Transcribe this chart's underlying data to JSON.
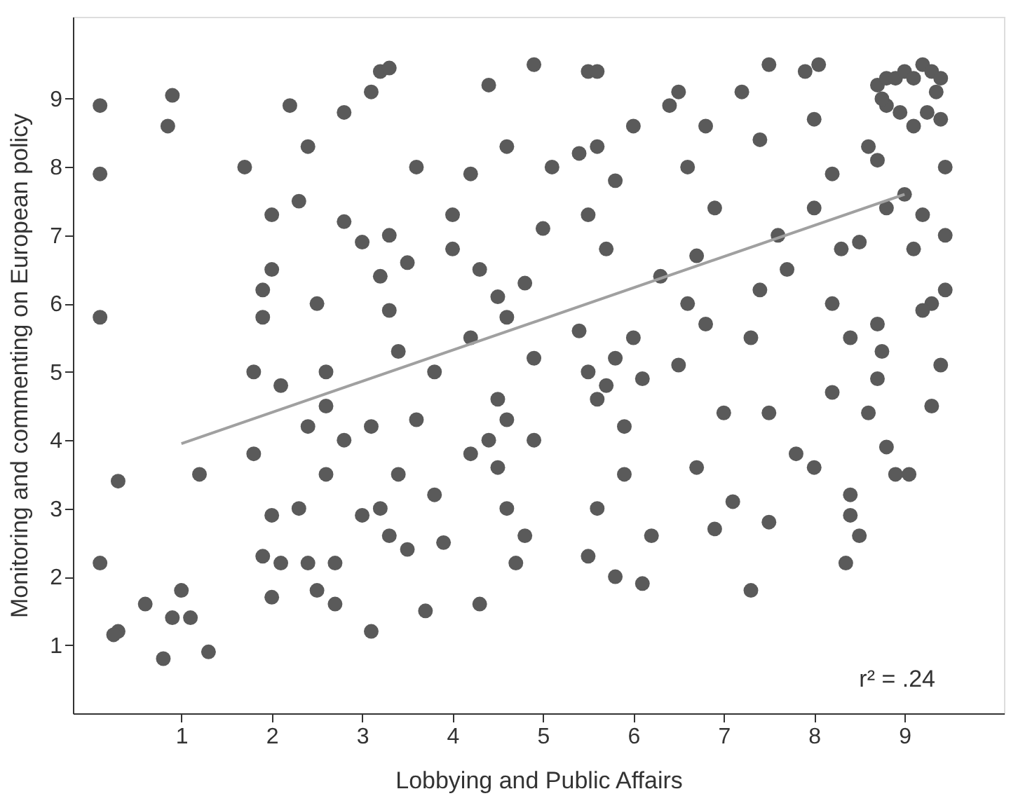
{
  "chart_data": {
    "type": "scatter",
    "xlabel": "Lobbying and Public Affairs",
    "ylabel": "Monitoring and commenting on European policy",
    "xlim": [
      -0.2,
      10.1
    ],
    "ylim": [
      0,
      10.2
    ],
    "xticks": [
      1,
      2,
      3,
      4,
      5,
      6,
      7,
      8,
      9
    ],
    "yticks": [
      1,
      2,
      3,
      4,
      5,
      6,
      7,
      8,
      9
    ],
    "grid": false,
    "marker": "circle",
    "annotations": [
      "r² = .24"
    ],
    "series": [
      {
        "color": "#5a5a5a",
        "x": [
          0.1,
          0.1,
          0.1,
          0.1,
          0.3,
          0.3,
          0.25,
          0.6,
          0.8,
          0.9,
          1.0,
          1.1,
          1.3,
          0.85,
          0.9,
          1.2,
          1.7,
          1.8,
          1.9,
          1.9,
          2.0,
          2.0,
          2.1,
          1.9,
          2.0,
          2.0,
          2.1,
          2.2,
          2.3,
          2.4,
          2.5,
          2.4,
          2.6,
          2.4,
          2.5,
          2.6,
          2.7,
          2.8,
          2.8,
          2.8,
          2.7,
          2.3,
          1.8,
          2.6,
          3.2,
          3.3,
          3.1,
          3.0,
          3.2,
          3.3,
          3.4,
          3.5,
          3.1,
          3.2,
          3.3,
          3.4,
          3.0,
          3.5,
          3.1,
          3.6,
          3.6,
          3.8,
          3.9,
          3.7,
          3.8,
          4.0,
          4.0,
          4.2,
          3.3,
          4.4,
          4.9,
          4.6,
          4.3,
          4.5,
          4.6,
          4.8,
          4.4,
          4.5,
          4.6,
          4.8,
          4.3,
          4.7,
          4.5,
          4.9,
          5.0,
          5.1,
          4.2,
          4.9,
          4.2,
          4.6,
          5.5,
          5.6,
          5.4,
          5.6,
          5.8,
          6.0,
          5.5,
          5.7,
          5.4,
          5.5,
          5.7,
          5.8,
          6.0,
          5.6,
          5.9,
          5.6,
          5.5,
          5.8,
          6.2,
          6.1,
          5.9,
          6.1,
          6.3,
          6.4,
          6.6,
          6.5,
          6.8,
          6.9,
          6.7,
          6.6,
          6.8,
          6.5,
          7.0,
          6.7,
          6.9,
          7.1,
          7.3,
          7.2,
          7.5,
          7.4,
          7.6,
          7.7,
          7.3,
          7.5,
          7.8,
          7.5,
          7.4,
          7.9,
          8.0,
          8.2,
          8.0,
          8.3,
          8.2,
          8.4,
          8.2,
          8.0,
          8.5,
          8.4,
          8.05,
          8.7,
          8.8,
          8.7,
          8.75,
          8.4,
          8.6,
          8.35,
          8.6,
          8.5,
          8.7,
          8.8,
          8.9,
          9.0,
          9.1,
          9.2,
          9.3,
          9.4,
          8.8,
          8.95,
          9.1,
          9.25,
          9.4,
          8.75,
          9.35,
          9.45,
          9.45,
          9.45,
          9.3,
          9.2,
          9.4,
          9.2,
          9.0,
          8.7,
          8.8,
          8.9,
          9.05,
          9.3,
          9.1
        ],
        "values": [
          8.9,
          7.9,
          5.8,
          2.2,
          3.4,
          1.2,
          1.15,
          1.6,
          0.8,
          1.4,
          1.8,
          1.4,
          0.9,
          8.6,
          9.05,
          3.5,
          8.0,
          5.0,
          6.2,
          5.8,
          7.3,
          6.5,
          4.8,
          2.3,
          2.9,
          1.7,
          2.2,
          8.9,
          7.5,
          8.3,
          6.0,
          4.2,
          5.0,
          2.2,
          1.8,
          3.5,
          1.6,
          8.8,
          7.2,
          4.0,
          2.2,
          3.0,
          3.8,
          4.5,
          9.4,
          9.45,
          9.1,
          6.9,
          6.4,
          5.9,
          5.3,
          6.6,
          4.2,
          3.0,
          2.6,
          3.5,
          2.9,
          2.4,
          1.2,
          8.0,
          4.3,
          3.2,
          2.5,
          1.5,
          5.0,
          6.8,
          7.3,
          5.5,
          7.0,
          9.2,
          9.5,
          8.3,
          6.5,
          6.1,
          5.8,
          6.3,
          4.0,
          3.6,
          3.0,
          2.6,
          1.6,
          2.2,
          4.6,
          5.2,
          7.1,
          8.0,
          3.8,
          4.0,
          7.9,
          4.3,
          9.4,
          9.4,
          8.2,
          8.3,
          7.8,
          8.6,
          7.3,
          6.8,
          5.6,
          5.0,
          4.8,
          5.2,
          5.5,
          4.6,
          4.2,
          3.0,
          2.3,
          2.0,
          2.6,
          1.9,
          3.5,
          4.9,
          6.4,
          8.9,
          8.0,
          9.1,
          8.6,
          7.4,
          6.7,
          6.0,
          5.7,
          5.1,
          4.4,
          3.6,
          2.7,
          3.1,
          1.8,
          9.1,
          9.5,
          8.4,
          7.0,
          6.5,
          5.5,
          4.4,
          3.8,
          2.8,
          6.2,
          9.4,
          8.7,
          7.9,
          7.4,
          6.8,
          6.0,
          5.5,
          4.7,
          3.6,
          2.6,
          3.2,
          9.5,
          8.1,
          7.4,
          5.7,
          5.3,
          2.9,
          4.4,
          2.2,
          8.3,
          6.9,
          9.2,
          9.3,
          9.3,
          9.4,
          9.3,
          9.5,
          9.4,
          9.3,
          8.9,
          8.8,
          8.6,
          8.8,
          8.7,
          9.0,
          9.1,
          8.0,
          7.0,
          6.2,
          6.0,
          5.9,
          5.1,
          7.3,
          7.6,
          4.9,
          3.9,
          3.5,
          3.5,
          4.5,
          6.8
        ]
      },
      {
        "type": "line",
        "color": "#a0a0a0",
        "line_style": "solid",
        "marker": "none",
        "x": [
          1,
          9
        ],
        "values": [
          3.95,
          7.6
        ]
      }
    ]
  }
}
